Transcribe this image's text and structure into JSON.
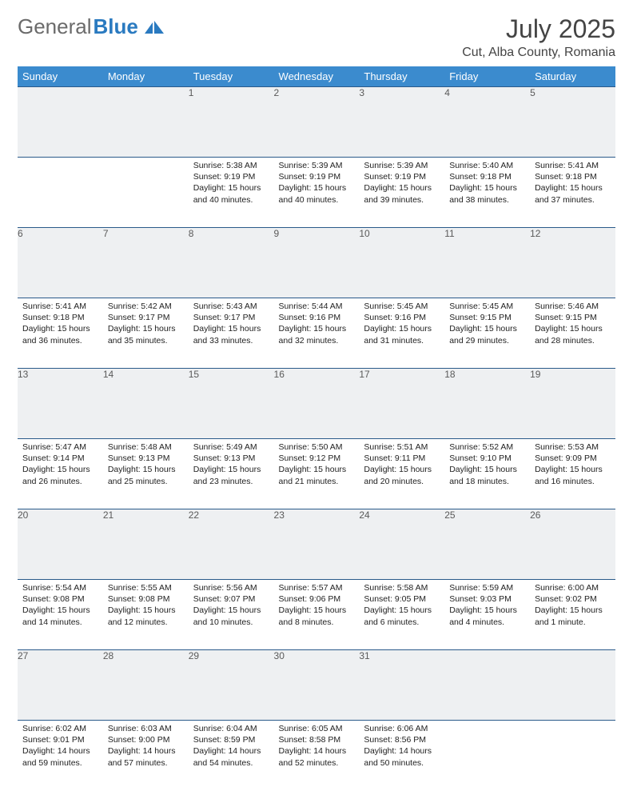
{
  "brand": {
    "part1": "General",
    "part2": "Blue"
  },
  "title": "July 2025",
  "location": "Cut, Alba County, Romania",
  "colors": {
    "header_bg": "#3b8bce",
    "header_fg": "#ffffff",
    "daynum_bg": "#eef0f2",
    "row_border": "#2a5a8a",
    "logo_gray": "#6b6b6b",
    "logo_blue": "#2a7ac0"
  },
  "day_headers": [
    "Sunday",
    "Monday",
    "Tuesday",
    "Wednesday",
    "Thursday",
    "Friday",
    "Saturday"
  ],
  "weeks": [
    [
      null,
      null,
      {
        "n": "1",
        "sr": "5:38 AM",
        "ss": "9:19 PM",
        "dl": "15 hours and 40 minutes."
      },
      {
        "n": "2",
        "sr": "5:39 AM",
        "ss": "9:19 PM",
        "dl": "15 hours and 40 minutes."
      },
      {
        "n": "3",
        "sr": "5:39 AM",
        "ss": "9:19 PM",
        "dl": "15 hours and 39 minutes."
      },
      {
        "n": "4",
        "sr": "5:40 AM",
        "ss": "9:18 PM",
        "dl": "15 hours and 38 minutes."
      },
      {
        "n": "5",
        "sr": "5:41 AM",
        "ss": "9:18 PM",
        "dl": "15 hours and 37 minutes."
      }
    ],
    [
      {
        "n": "6",
        "sr": "5:41 AM",
        "ss": "9:18 PM",
        "dl": "15 hours and 36 minutes."
      },
      {
        "n": "7",
        "sr": "5:42 AM",
        "ss": "9:17 PM",
        "dl": "15 hours and 35 minutes."
      },
      {
        "n": "8",
        "sr": "5:43 AM",
        "ss": "9:17 PM",
        "dl": "15 hours and 33 minutes."
      },
      {
        "n": "9",
        "sr": "5:44 AM",
        "ss": "9:16 PM",
        "dl": "15 hours and 32 minutes."
      },
      {
        "n": "10",
        "sr": "5:45 AM",
        "ss": "9:16 PM",
        "dl": "15 hours and 31 minutes."
      },
      {
        "n": "11",
        "sr": "5:45 AM",
        "ss": "9:15 PM",
        "dl": "15 hours and 29 minutes."
      },
      {
        "n": "12",
        "sr": "5:46 AM",
        "ss": "9:15 PM",
        "dl": "15 hours and 28 minutes."
      }
    ],
    [
      {
        "n": "13",
        "sr": "5:47 AM",
        "ss": "9:14 PM",
        "dl": "15 hours and 26 minutes."
      },
      {
        "n": "14",
        "sr": "5:48 AM",
        "ss": "9:13 PM",
        "dl": "15 hours and 25 minutes."
      },
      {
        "n": "15",
        "sr": "5:49 AM",
        "ss": "9:13 PM",
        "dl": "15 hours and 23 minutes."
      },
      {
        "n": "16",
        "sr": "5:50 AM",
        "ss": "9:12 PM",
        "dl": "15 hours and 21 minutes."
      },
      {
        "n": "17",
        "sr": "5:51 AM",
        "ss": "9:11 PM",
        "dl": "15 hours and 20 minutes."
      },
      {
        "n": "18",
        "sr": "5:52 AM",
        "ss": "9:10 PM",
        "dl": "15 hours and 18 minutes."
      },
      {
        "n": "19",
        "sr": "5:53 AM",
        "ss": "9:09 PM",
        "dl": "15 hours and 16 minutes."
      }
    ],
    [
      {
        "n": "20",
        "sr": "5:54 AM",
        "ss": "9:08 PM",
        "dl": "15 hours and 14 minutes."
      },
      {
        "n": "21",
        "sr": "5:55 AM",
        "ss": "9:08 PM",
        "dl": "15 hours and 12 minutes."
      },
      {
        "n": "22",
        "sr": "5:56 AM",
        "ss": "9:07 PM",
        "dl": "15 hours and 10 minutes."
      },
      {
        "n": "23",
        "sr": "5:57 AM",
        "ss": "9:06 PM",
        "dl": "15 hours and 8 minutes."
      },
      {
        "n": "24",
        "sr": "5:58 AM",
        "ss": "9:05 PM",
        "dl": "15 hours and 6 minutes."
      },
      {
        "n": "25",
        "sr": "5:59 AM",
        "ss": "9:03 PM",
        "dl": "15 hours and 4 minutes."
      },
      {
        "n": "26",
        "sr": "6:00 AM",
        "ss": "9:02 PM",
        "dl": "15 hours and 1 minute."
      }
    ],
    [
      {
        "n": "27",
        "sr": "6:02 AM",
        "ss": "9:01 PM",
        "dl": "14 hours and 59 minutes."
      },
      {
        "n": "28",
        "sr": "6:03 AM",
        "ss": "9:00 PM",
        "dl": "14 hours and 57 minutes."
      },
      {
        "n": "29",
        "sr": "6:04 AM",
        "ss": "8:59 PM",
        "dl": "14 hours and 54 minutes."
      },
      {
        "n": "30",
        "sr": "6:05 AM",
        "ss": "8:58 PM",
        "dl": "14 hours and 52 minutes."
      },
      {
        "n": "31",
        "sr": "6:06 AM",
        "ss": "8:56 PM",
        "dl": "14 hours and 50 minutes."
      },
      null,
      null
    ]
  ],
  "labels": {
    "sunrise": "Sunrise:",
    "sunset": "Sunset:",
    "daylight": "Daylight:"
  }
}
